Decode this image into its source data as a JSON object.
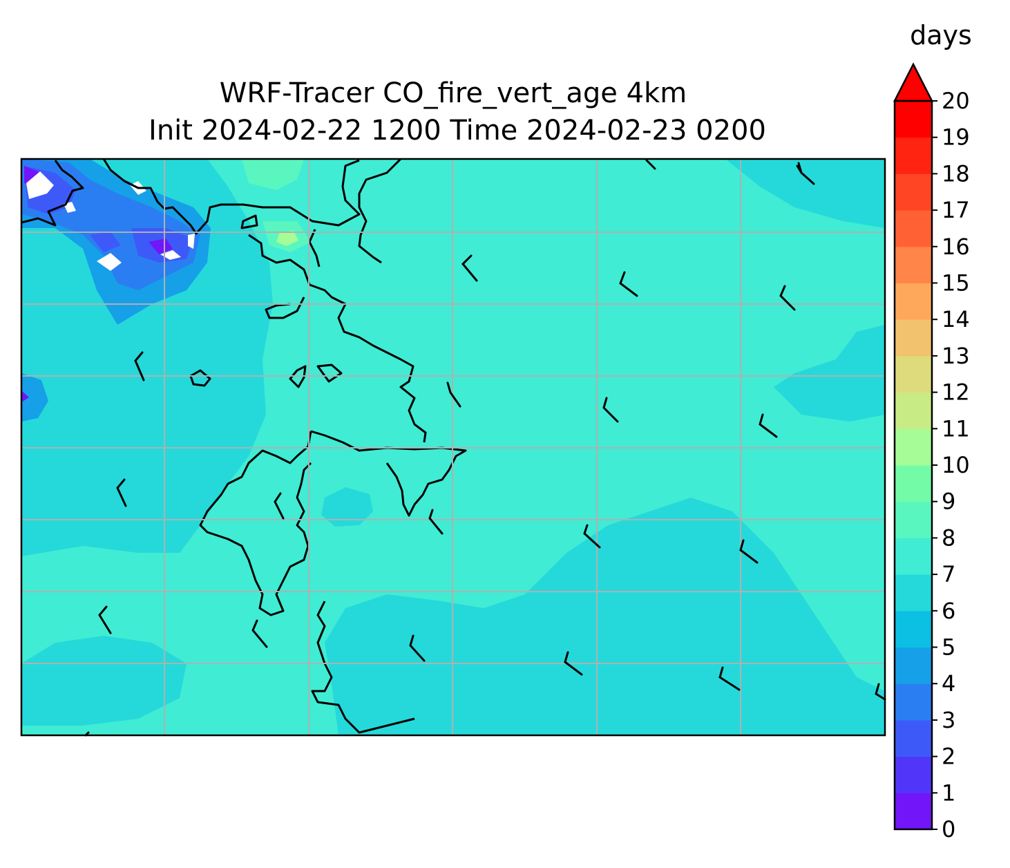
{
  "title": {
    "line1": "WRF-Tracer CO_fire_vert_age 4km",
    "line2": "Init 2024-02-22 1200 Time 2024-02-23 0200"
  },
  "colorbar": {
    "units": "days",
    "ticks": [
      "0",
      "1",
      "2",
      "3",
      "4",
      "5",
      "6",
      "7",
      "8",
      "9",
      "10",
      "11",
      "12",
      "13",
      "14",
      "15",
      "16",
      "17",
      "18",
      "19",
      "20"
    ],
    "extend": "max",
    "colors": [
      "#7216f9",
      "#5136f9",
      "#3d5af9",
      "#2b7ef2",
      "#16a0e8",
      "#0bc0e3",
      "#25d9da",
      "#40ecd4",
      "#5af6c0",
      "#74fba8",
      "#a6fc96",
      "#c9eb85",
      "#dddb7c",
      "#f2c26e",
      "#fda85b",
      "#ff8648",
      "#ff6135",
      "#ff4524",
      "#ff2412",
      "#ff0000"
    ],
    "extend_color": "#ff0000"
  },
  "map": {
    "background_color": "#40ecd4",
    "gridline_color": "#b0b0b0"
  },
  "chart_data": {
    "type": "heatmap",
    "variable": "CO_fire_vert_age",
    "units": "days",
    "levels": [
      0,
      1,
      2,
      3,
      4,
      5,
      6,
      7,
      8,
      9,
      10,
      11,
      12,
      13,
      14,
      15,
      16,
      17,
      18,
      19,
      20
    ],
    "dominant_range": [
      6,
      8
    ],
    "features": [
      {
        "region": "northwest corner",
        "value_range": [
          0,
          6
        ]
      },
      {
        "region": "south-central",
        "value_range": [
          6,
          7
        ]
      },
      {
        "region": "rest of domain",
        "value_range": [
          7,
          8
        ]
      },
      {
        "region": "local maxima near top-center",
        "value_range": [
          9,
          11
        ]
      }
    ],
    "wind_barbs": true
  }
}
